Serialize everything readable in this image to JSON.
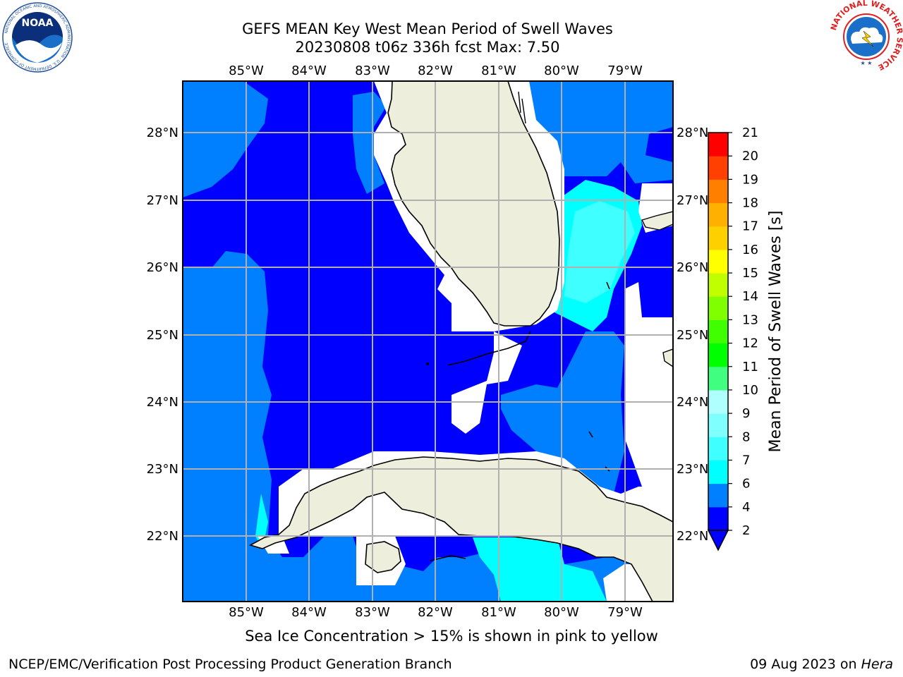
{
  "title": "GEFS MEAN Key West Mean Period of Swell Waves",
  "subtitle": "20230808 t06z 336h fcst   Max: 7.50",
  "colorbar": {
    "label": "Mean Period of Swell Waves [s]",
    "ticks": [
      "2",
      "4",
      "6",
      "7",
      "8",
      "9",
      "10",
      "11",
      "12",
      "13",
      "14",
      "15",
      "16",
      "17",
      "18",
      "19",
      "20",
      "21"
    ],
    "colors": [
      "#0000ff",
      "#0080ff",
      "#00ffff",
      "#40ffff",
      "#80ffff",
      "#b0ffff",
      "#40ff80",
      "#00ff00",
      "#40ff00",
      "#80ff00",
      "#c0ff00",
      "#ffff00",
      "#ffd000",
      "#ffb000",
      "#ff8000",
      "#ff4000",
      "#ff0000",
      "#ff2000"
    ]
  },
  "axes": {
    "lon_labels": [
      "85°W",
      "84°W",
      "83°W",
      "82°W",
      "81°W",
      "80°W",
      "79°W"
    ],
    "lat_labels": [
      "28°N",
      "27°N",
      "26°N",
      "25°N",
      "24°N",
      "23°N",
      "22°N"
    ]
  },
  "footer": {
    "note": "Sea Ice Concentration > 15% is shown in pink to yellow",
    "credit": "NCEP/EMC/Verification Post Processing Product Generation Branch",
    "date": "09 Aug 2023 on",
    "host": "Hera"
  },
  "logos": {
    "left": "NOAA",
    "left_ring": "NATIONAL OCEANIC AND ATMOSPHERIC ADMINISTRATION · U.S. DEPARTMENT OF COMMERCE",
    "right_ring": "NATIONAL WEATHER SERVICE"
  }
}
